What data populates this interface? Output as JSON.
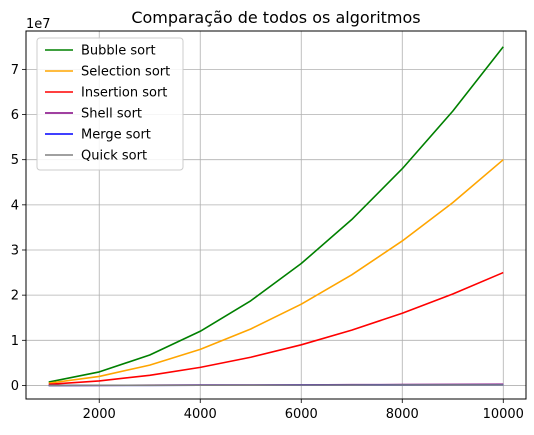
{
  "chart_data": {
    "type": "line",
    "title": "Comparação de todos os algoritmos",
    "xlabel": "",
    "ylabel": "",
    "y_offset_label": "1e7",
    "x": [
      1000,
      2000,
      3000,
      4000,
      5000,
      6000,
      7000,
      8000,
      9000,
      10000
    ],
    "xlim": [
      550,
      10450
    ],
    "ylim": [
      -0.3,
      7.85
    ],
    "x_ticks": [
      2000,
      4000,
      6000,
      8000,
      10000
    ],
    "y_ticks": [
      0,
      1,
      2,
      3,
      4,
      5,
      6,
      7
    ],
    "grid": true,
    "legend_position": "top-left",
    "series": [
      {
        "name": "Bubble sort",
        "color": "#008000",
        "values": [
          0.075,
          0.3,
          0.675,
          1.2,
          1.875,
          2.7,
          3.675,
          4.8,
          6.075,
          7.5
        ]
      },
      {
        "name": "Selection sort",
        "color": "#FFA500",
        "values": [
          0.05,
          0.2,
          0.45,
          0.8,
          1.25,
          1.8,
          2.45,
          3.2,
          4.05,
          5.0
        ]
      },
      {
        "name": "Insertion sort",
        "color": "#FF0000",
        "values": [
          0.025,
          0.1,
          0.225,
          0.4,
          0.625,
          0.9,
          1.225,
          1.6,
          2.025,
          2.5
        ]
      },
      {
        "name": "Shell sort",
        "color": "#800080",
        "values": [
          0.0015,
          0.0035,
          0.0055,
          0.008,
          0.01,
          0.013,
          0.016,
          0.019,
          0.022,
          0.025
        ]
      },
      {
        "name": "Merge sort",
        "color": "#0000FF",
        "values": [
          0.001,
          0.0025,
          0.004,
          0.0055,
          0.007,
          0.0085,
          0.01,
          0.0115,
          0.013,
          0.0145
        ]
      },
      {
        "name": "Quick sort",
        "color": "#808080",
        "values": [
          0.001,
          0.002,
          0.0035,
          0.0045,
          0.006,
          0.0075,
          0.009,
          0.0105,
          0.0115,
          0.013
        ]
      }
    ]
  }
}
